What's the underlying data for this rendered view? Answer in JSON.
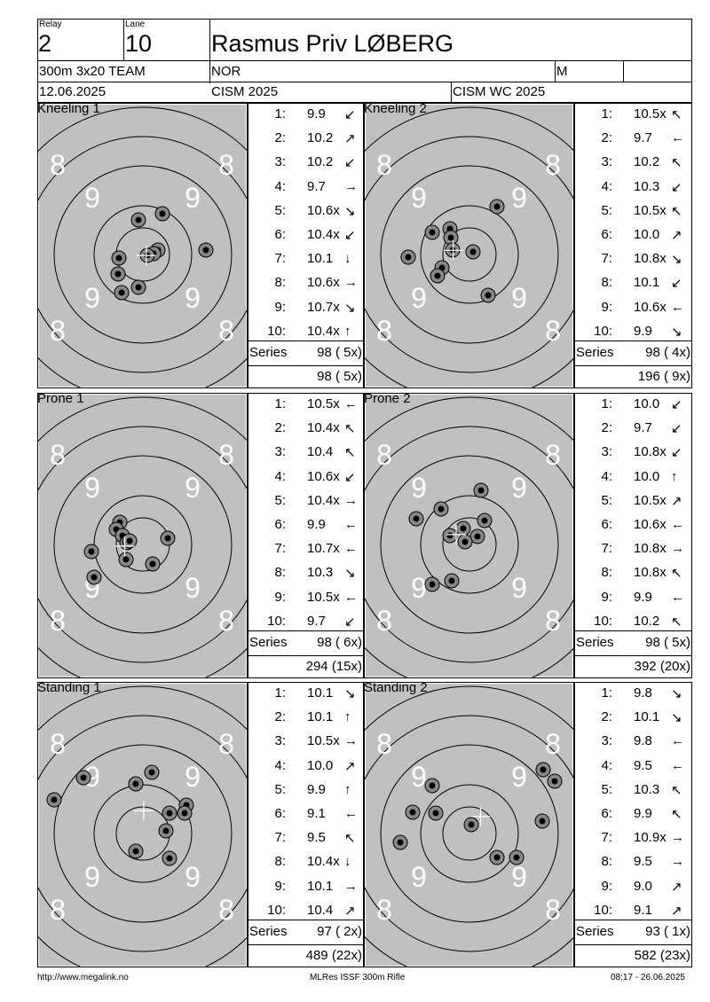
{
  "header": {
    "relay_label": "Relay",
    "relay_value": "2",
    "lane_label": "Lane",
    "lane_value": "10",
    "athlete_name": "Rasmus Priv LØBERG",
    "event": "300m 3x20 TEAM",
    "nation": "NOR",
    "gender": "M",
    "date": "12.06.2025",
    "competition": "CISM 2025",
    "match": "CISM WC 2025"
  },
  "ring_labels": {
    "eight": "8",
    "nine": "9"
  },
  "series_label": "Series",
  "targets": [
    {
      "title": "Kneeling 1",
      "shots": [
        {
          "n": "1:",
          "v": "9.9",
          "dir": "↙"
        },
        {
          "n": "2:",
          "v": "10.2",
          "dir": "↗"
        },
        {
          "n": "3:",
          "v": "10.2",
          "dir": "↙"
        },
        {
          "n": "4:",
          "v": "9.7",
          "dir": "→"
        },
        {
          "n": "5:",
          "v": "10.6x",
          "dir": "↘"
        },
        {
          "n": "6:",
          "v": "10.4x",
          "dir": "↙"
        },
        {
          "n": "7:",
          "v": "10.1",
          "dir": "↓"
        },
        {
          "n": "8:",
          "v": "10.6x",
          "dir": "→"
        },
        {
          "n": "9:",
          "v": "10.7x",
          "dir": "↘"
        },
        {
          "n": "10:",
          "v": "10.4x",
          "dir": "↑"
        }
      ],
      "series": "98 ( 5x)",
      "total": "98 ( 5x)",
      "holes": [
        [
          156,
          248
        ],
        [
          183,
          241
        ],
        [
          232,
          282
        ],
        [
          178,
          282
        ],
        [
          173,
          286
        ],
        [
          134,
          291
        ],
        [
          133,
          309
        ],
        [
          137,
          330
        ],
        [
          156,
          324
        ],
        [
          166,
          288
        ]
      ]
    },
    {
      "title": "Kneeling 2",
      "shots": [
        {
          "n": "1:",
          "v": "10.5x",
          "dir": "↖"
        },
        {
          "n": "2:",
          "v": "9.7",
          "dir": "←"
        },
        {
          "n": "3:",
          "v": "10.2",
          "dir": "↖"
        },
        {
          "n": "4:",
          "v": "10.3",
          "dir": "↙"
        },
        {
          "n": "5:",
          "v": "10.5x",
          "dir": "↖"
        },
        {
          "n": "6:",
          "v": "10.0",
          "dir": "↗"
        },
        {
          "n": "7:",
          "v": "10.8x",
          "dir": "↘"
        },
        {
          "n": "8:",
          "v": "10.1",
          "dir": "↙"
        },
        {
          "n": "9:",
          "v": "10.6x",
          "dir": "←"
        },
        {
          "n": "10:",
          "v": "9.9",
          "dir": "↘"
        }
      ],
      "series": "98 ( 4x)",
      "total": "196 ( 9x)",
      "holes": [
        [
          560,
          233
        ],
        [
          487,
          262
        ],
        [
          507,
          258
        ],
        [
          508,
          268
        ],
        [
          533,
          284
        ],
        [
          460,
          290
        ],
        [
          498,
          302
        ],
        [
          493,
          311
        ],
        [
          550,
          333
        ],
        [
          510,
          282
        ]
      ]
    },
    {
      "title": "Prone 1",
      "shots": [
        {
          "n": "1:",
          "v": "10.5x",
          "dir": "←"
        },
        {
          "n": "2:",
          "v": "10.4x",
          "dir": "↖"
        },
        {
          "n": "3:",
          "v": "10.4",
          "dir": "↖"
        },
        {
          "n": "4:",
          "v": "10.6x",
          "dir": "↙"
        },
        {
          "n": "5:",
          "v": "10.4x",
          "dir": "→"
        },
        {
          "n": "6:",
          "v": "9.9",
          "dir": "←"
        },
        {
          "n": "7:",
          "v": "10.7x",
          "dir": "←"
        },
        {
          "n": "8:",
          "v": "10.3",
          "dir": "↘"
        },
        {
          "n": "9:",
          "v": "10.5x",
          "dir": "←"
        },
        {
          "n": "10:",
          "v": "9.7",
          "dir": "↙"
        }
      ],
      "series": "98 ( 6x)",
      "total": "294 (15x)",
      "holes": [
        [
          135,
          589
        ],
        [
          131,
          597
        ],
        [
          138,
          604
        ],
        [
          143,
          612
        ],
        [
          189,
          607
        ],
        [
          103,
          622
        ],
        [
          142,
          631
        ],
        [
          172,
          636
        ],
        [
          106,
          651
        ],
        [
          146,
          610
        ]
      ]
    },
    {
      "title": "Prone 2",
      "shots": [
        {
          "n": "1:",
          "v": "10.0",
          "dir": "↙"
        },
        {
          "n": "2:",
          "v": "9.7",
          "dir": "↙"
        },
        {
          "n": "3:",
          "v": "10.8x",
          "dir": "↙"
        },
        {
          "n": "4:",
          "v": "10.0",
          "dir": "↑"
        },
        {
          "n": "5:",
          "v": "10.5x",
          "dir": "↗"
        },
        {
          "n": "6:",
          "v": "10.6x",
          "dir": "←"
        },
        {
          "n": "7:",
          "v": "10.8x",
          "dir": "→"
        },
        {
          "n": "8:",
          "v": "10.8x",
          "dir": "↖"
        },
        {
          "n": "9:",
          "v": "9.9",
          "dir": "←"
        },
        {
          "n": "10:",
          "v": "10.2",
          "dir": "↖"
        }
      ],
      "series": "98 ( 5x)",
      "total": "392 (20x)",
      "holes": [
        [
          542,
          553
        ],
        [
          497,
          574
        ],
        [
          469,
          585
        ],
        [
          546,
          587
        ],
        [
          522,
          596
        ],
        [
          507,
          604
        ],
        [
          538,
          605
        ],
        [
          524,
          611
        ],
        [
          509,
          655
        ],
        [
          487,
          659
        ]
      ]
    },
    {
      "title": "Standing 1",
      "shots": [
        {
          "n": "1:",
          "v": "10.1",
          "dir": "↘"
        },
        {
          "n": "2:",
          "v": "10.1",
          "dir": "↑"
        },
        {
          "n": "3:",
          "v": "10.5x",
          "dir": "→"
        },
        {
          "n": "4:",
          "v": "10.0",
          "dir": "↗"
        },
        {
          "n": "5:",
          "v": "9.9",
          "dir": "↑"
        },
        {
          "n": "6:",
          "v": "9.1",
          "dir": "←"
        },
        {
          "n": "7:",
          "v": "9.5",
          "dir": "↖"
        },
        {
          "n": "8:",
          "v": "10.4x",
          "dir": "↓"
        },
        {
          "n": "9:",
          "v": "10.1",
          "dir": "→"
        },
        {
          "n": "10:",
          "v": "10.4",
          "dir": "↗"
        }
      ],
      "series": "97 ( 2x)",
      "total": "489 (22x)",
      "holes": [
        [
          94,
          877
        ],
        [
          171,
          871
        ],
        [
          153,
          884
        ],
        [
          61,
          902
        ],
        [
          210,
          908
        ],
        [
          208,
          917
        ],
        [
          191,
          917
        ],
        [
          187,
          937
        ],
        [
          153,
          960
        ],
        [
          191,
          968
        ]
      ]
    },
    {
      "title": "Standing 2",
      "shots": [
        {
          "n": "1:",
          "v": "9.8",
          "dir": "↘"
        },
        {
          "n": "2:",
          "v": "10.1",
          "dir": "↘"
        },
        {
          "n": "3:",
          "v": "9.8",
          "dir": "←"
        },
        {
          "n": "4:",
          "v": "9.5",
          "dir": "←"
        },
        {
          "n": "5:",
          "v": "10.3",
          "dir": "↖"
        },
        {
          "n": "6:",
          "v": "9.9",
          "dir": "↖"
        },
        {
          "n": "7:",
          "v": "10.9x",
          "dir": "→"
        },
        {
          "n": "8:",
          "v": "9.5",
          "dir": "→"
        },
        {
          "n": "9:",
          "v": "9.0",
          "dir": "↗"
        },
        {
          "n": "10:",
          "v": "9.1",
          "dir": "↗"
        }
      ],
      "series": "93 ( 1x)",
      "total": "582 (23x)",
      "holes": [
        [
          612,
          868
        ],
        [
          625,
          881
        ],
        [
          487,
          886
        ],
        [
          465,
          916
        ],
        [
          491,
          917
        ],
        [
          611,
          926
        ],
        [
          531,
          930
        ],
        [
          451,
          950
        ],
        [
          560,
          967
        ],
        [
          582,
          967
        ]
      ]
    }
  ],
  "footer": {
    "url": "http://www.megalink.no",
    "software": "MLRes ISSF 300m Rifle",
    "timestamp": "08:17 - 26.06.2025"
  }
}
